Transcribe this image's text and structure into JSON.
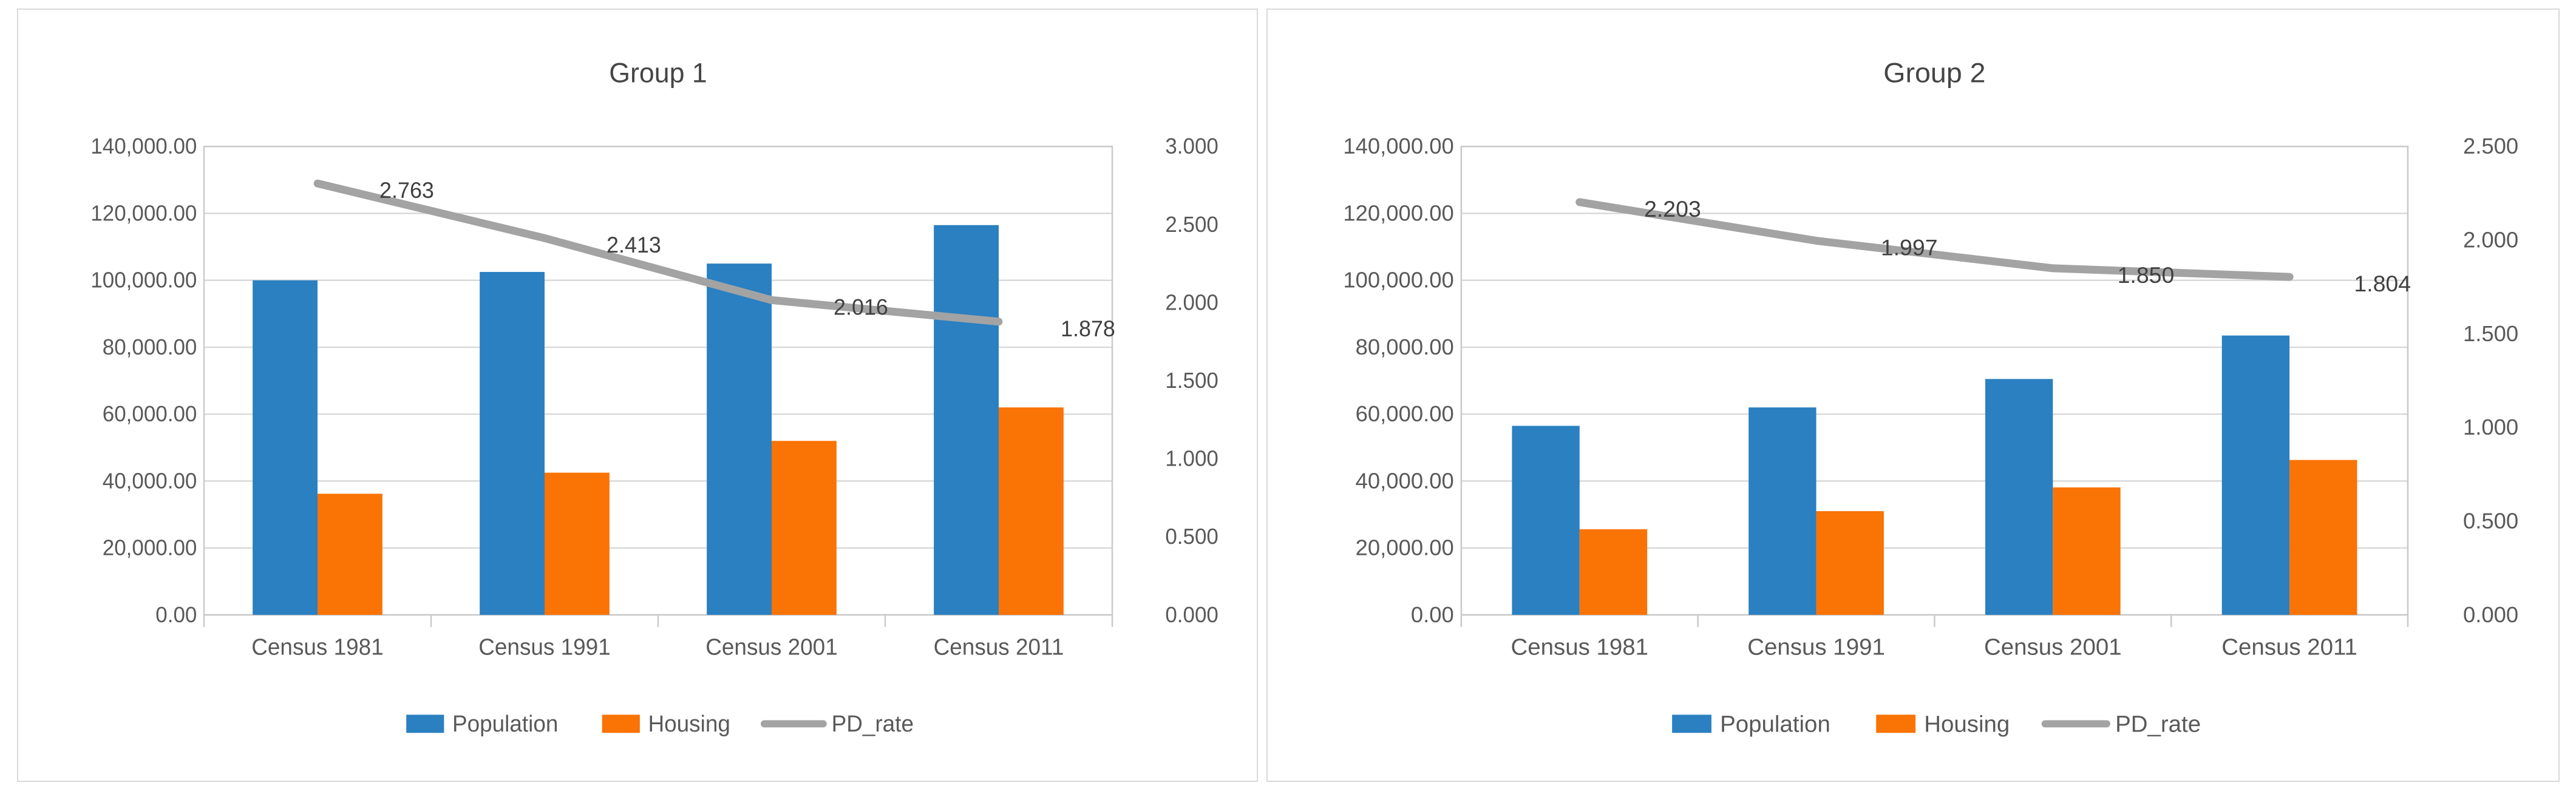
{
  "figure": {
    "background": "#ffffff",
    "panel_border_color": "#d9d9d9",
    "gridline_color": "#d9d9d9",
    "plot_border_color": "#c9c9c9",
    "text_color": "#595959",
    "data_label_color": "#404040"
  },
  "chart_data": [
    {
      "type": "bar",
      "subtype": "combo-bar-line",
      "title": "Group 1",
      "categories": [
        "Census 1981",
        "Census 1991",
        "Census 2001",
        "Census 2011"
      ],
      "series": [
        {
          "name": "Population",
          "kind": "bar",
          "axis": "left",
          "color": "#2A80C1",
          "values": [
            100000,
            102500,
            105000,
            116500
          ]
        },
        {
          "name": "Housing",
          "kind": "bar",
          "axis": "left",
          "color": "#FA7305",
          "values": [
            36200,
            42500,
            52000,
            62000
          ]
        },
        {
          "name": "PD_rate",
          "kind": "line",
          "axis": "right",
          "color": "#A3A3A3",
          "values": [
            2.763,
            2.413,
            2.016,
            1.878
          ],
          "labels": [
            "2.763",
            "2.413",
            "2.016",
            "1.878"
          ]
        }
      ],
      "left_axis": {
        "min": 0,
        "max": 140000,
        "tick_labels": [
          "140,000.00",
          "120,000.00",
          "100,000.00",
          "80,000.00",
          "60,000.00",
          "40,000.00",
          "20,000.00",
          "0.00"
        ]
      },
      "right_axis": {
        "min": 0,
        "max": 3.0,
        "tick_labels": [
          "3.000",
          "2.500",
          "2.000",
          "1.500",
          "1.000",
          "0.500",
          "0.000"
        ]
      },
      "legend": [
        "Population",
        "Housing",
        "PD_rate"
      ],
      "legend_position": "bottom",
      "grid": true
    },
    {
      "type": "bar",
      "subtype": "combo-bar-line",
      "title": "Group 2",
      "categories": [
        "Census 1981",
        "Census 1991",
        "Census 2001",
        "Census 2011"
      ],
      "series": [
        {
          "name": "Population",
          "kind": "bar",
          "axis": "left",
          "color": "#2A80C1",
          "values": [
            56500,
            62000,
            70500,
            83500
          ]
        },
        {
          "name": "Housing",
          "kind": "bar",
          "axis": "left",
          "color": "#FA7305",
          "values": [
            25600,
            31000,
            38100,
            46300
          ]
        },
        {
          "name": "PD_rate",
          "kind": "line",
          "axis": "right",
          "color": "#A3A3A3",
          "values": [
            2.203,
            1.997,
            1.85,
            1.804
          ],
          "labels": [
            "2.203",
            "1.997",
            "1.850",
            "1.804"
          ]
        }
      ],
      "left_axis": {
        "min": 0,
        "max": 140000,
        "tick_labels": [
          "140,000.00",
          "120,000.00",
          "100,000.00",
          "80,000.00",
          "60,000.00",
          "40,000.00",
          "20,000.00",
          "0.00"
        ]
      },
      "right_axis": {
        "min": 0,
        "max": 2.5,
        "tick_labels": [
          "2.500",
          "2.000",
          "1.500",
          "1.000",
          "0.500",
          "0.000"
        ]
      },
      "legend": [
        "Population",
        "Housing",
        "PD_rate"
      ],
      "legend_position": "bottom",
      "grid": true
    }
  ]
}
